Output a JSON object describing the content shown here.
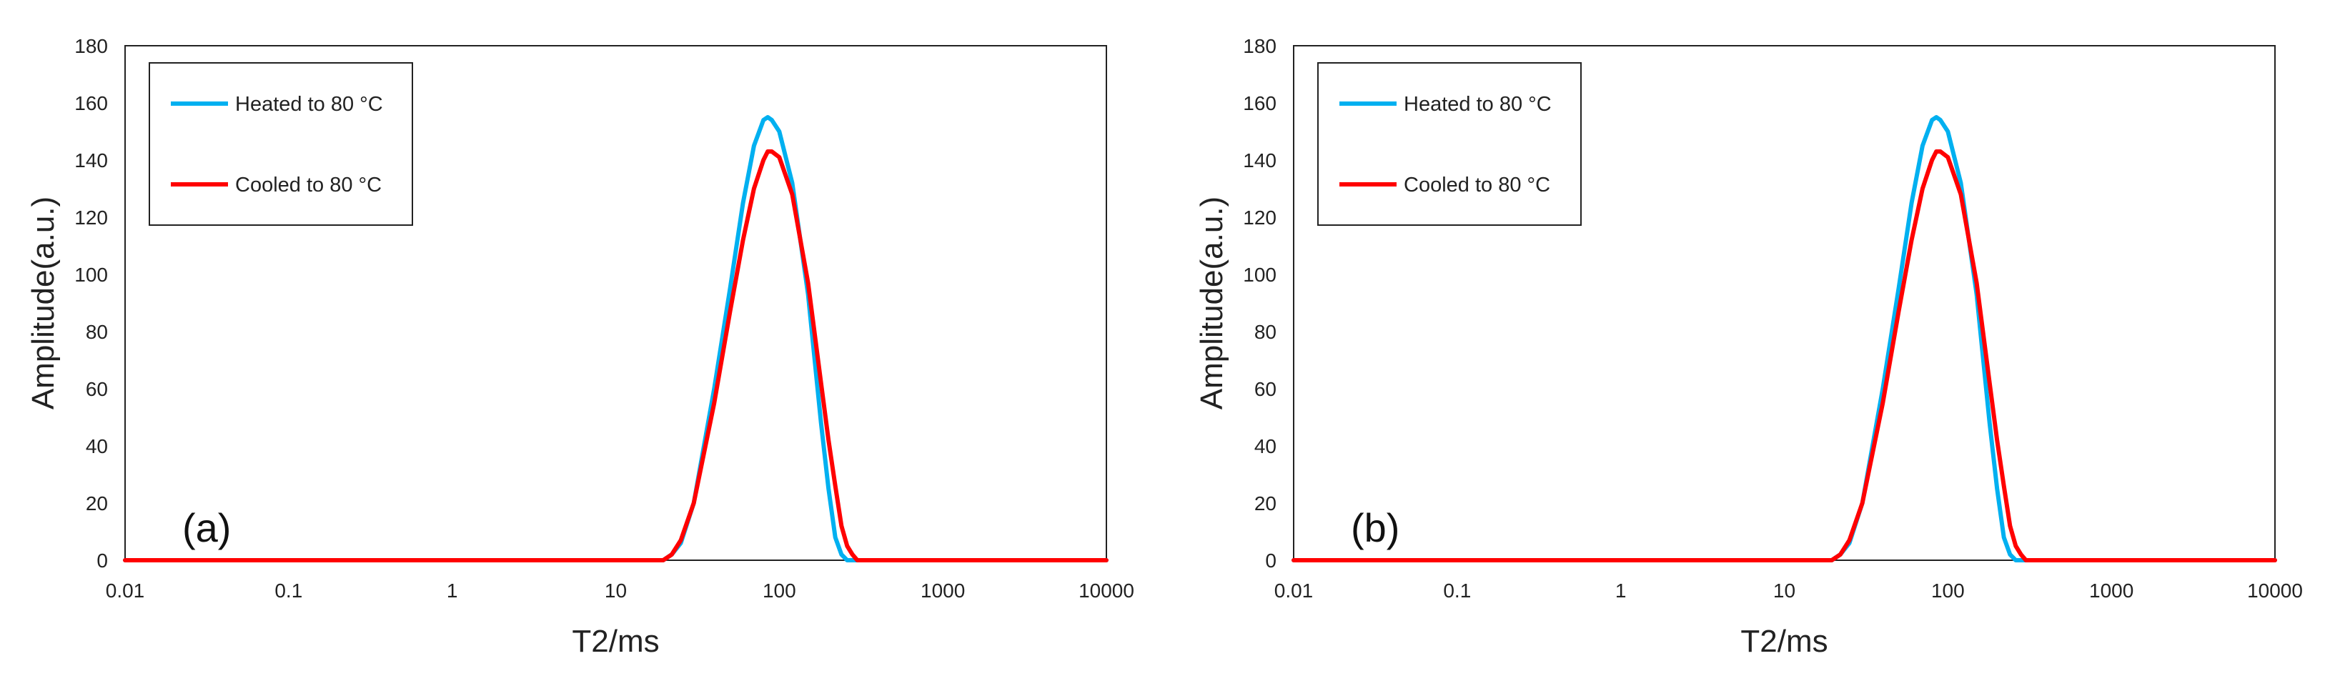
{
  "chart_data": [
    {
      "type": "line",
      "panel_label": "(a)",
      "xlabel": "T2/ms",
      "ylabel": "Amplitude(a.u.)",
      "x_scale": "log",
      "xlim": [
        0.01,
        10000
      ],
      "ylim": [
        0,
        180
      ],
      "x_ticks": [
        0.01,
        0.1,
        1,
        10,
        100,
        1000,
        10000
      ],
      "x_tick_labels": [
        "0.01",
        "0.1",
        "1",
        "10",
        "100",
        "1000",
        "10000"
      ],
      "y_ticks": [
        0,
        20,
        40,
        60,
        80,
        100,
        120,
        140,
        160,
        180
      ],
      "y_tick_labels": [
        "0",
        "20",
        "40",
        "60",
        "80",
        "100",
        "120",
        "140",
        "160",
        "180"
      ],
      "grid": false,
      "legend_position": "top-left",
      "series": [
        {
          "name": "Heated to 80 °C",
          "color": "#00B0F0",
          "x": [
            0.01,
            0.1,
            1,
            10,
            19.5,
            22,
            25,
            30,
            40,
            50,
            60,
            70,
            80,
            85,
            90,
            100,
            120,
            150,
            180,
            200,
            220,
            240,
            260,
            280,
            300,
            1000,
            10000
          ],
          "y": [
            0,
            0,
            0,
            0,
            0,
            2,
            6,
            20,
            60,
            95,
            125,
            145,
            154,
            155,
            154,
            150,
            132,
            93,
            48,
            25,
            8,
            2,
            0,
            0,
            0,
            0,
            0
          ]
        },
        {
          "name": "Cooled to 80 °C",
          "color": "#FF0000",
          "x": [
            0.01,
            0.1,
            1,
            10,
            19.5,
            22,
            25,
            30,
            40,
            50,
            60,
            70,
            80,
            85,
            90,
            100,
            120,
            150,
            180,
            200,
            220,
            240,
            260,
            280,
            300,
            320,
            1000,
            10000
          ],
          "y": [
            0,
            0,
            0,
            0,
            0,
            2,
            7,
            20,
            55,
            87,
            112,
            130,
            140,
            143,
            143,
            141,
            128,
            97,
            62,
            42,
            26,
            12,
            5,
            2,
            0,
            0,
            0,
            0
          ]
        }
      ]
    },
    {
      "type": "line",
      "panel_label": "(b)",
      "xlabel": "T2/ms",
      "ylabel": "Amplitude(a.u.)",
      "x_scale": "log",
      "xlim": [
        0.01,
        10000
      ],
      "ylim": [
        0,
        180
      ],
      "x_ticks": [
        0.01,
        0.1,
        1,
        10,
        100,
        1000,
        10000
      ],
      "x_tick_labels": [
        "0.01",
        "0.1",
        "1",
        "10",
        "100",
        "1000",
        "10000"
      ],
      "y_ticks": [
        0,
        20,
        40,
        60,
        80,
        100,
        120,
        140,
        160,
        180
      ],
      "y_tick_labels": [
        "0",
        "20",
        "40",
        "60",
        "80",
        "100",
        "120",
        "140",
        "160",
        "180"
      ],
      "grid": false,
      "legend_position": "top-left",
      "series": [
        {
          "name": "Heated to 80 °C",
          "color": "#00B0F0",
          "x": [
            0.01,
            0.1,
            1,
            10,
            19.5,
            22,
            25,
            30,
            40,
            50,
            60,
            70,
            80,
            85,
            90,
            100,
            120,
            150,
            180,
            200,
            220,
            240,
            260,
            280,
            300,
            1000,
            10000
          ],
          "y": [
            0,
            0,
            0,
            0,
            0,
            2,
            6,
            20,
            60,
            95,
            125,
            145,
            154,
            155,
            154,
            150,
            132,
            93,
            48,
            25,
            8,
            2,
            0,
            0,
            0,
            0,
            0
          ]
        },
        {
          "name": "Cooled to 80 °C",
          "color": "#FF0000",
          "x": [
            0.01,
            0.1,
            1,
            10,
            19.5,
            22,
            25,
            30,
            40,
            50,
            60,
            70,
            80,
            85,
            90,
            100,
            120,
            150,
            180,
            200,
            220,
            240,
            260,
            280,
            300,
            320,
            1000,
            10000
          ],
          "y": [
            0,
            0,
            0,
            0,
            0,
            2,
            7,
            20,
            55,
            87,
            112,
            130,
            140,
            143,
            143,
            141,
            128,
            97,
            62,
            42,
            26,
            12,
            5,
            2,
            0,
            0,
            0,
            0
          ]
        }
      ]
    }
  ]
}
